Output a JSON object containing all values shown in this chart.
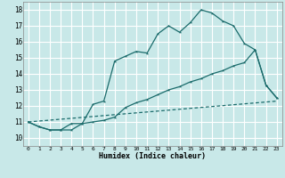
{
  "title": "",
  "xlabel": "Humidex (Indice chaleur)",
  "xlim": [
    -0.5,
    23.5
  ],
  "ylim": [
    9.5,
    18.5
  ],
  "xticks": [
    0,
    1,
    2,
    3,
    4,
    5,
    6,
    7,
    8,
    9,
    10,
    11,
    12,
    13,
    14,
    15,
    16,
    17,
    18,
    19,
    20,
    21,
    22,
    23
  ],
  "yticks": [
    10,
    11,
    12,
    13,
    14,
    15,
    16,
    17,
    18
  ],
  "background_color": "#c8e8e8",
  "grid_color": "#ffffff",
  "line_color": "#1a6b6b",
  "line1_y": [
    11.0,
    10.7,
    10.5,
    10.5,
    10.9,
    10.9,
    12.1,
    12.3,
    14.8,
    15.1,
    15.4,
    15.3,
    16.5,
    17.0,
    16.6,
    17.2,
    18.0,
    17.8,
    17.3,
    17.0,
    15.9,
    15.5,
    13.3,
    12.5
  ],
  "line2_y": [
    11.0,
    10.7,
    10.5,
    10.5,
    10.5,
    10.9,
    11.0,
    11.1,
    11.3,
    11.9,
    12.2,
    12.4,
    12.7,
    13.0,
    13.2,
    13.5,
    13.7,
    14.0,
    14.2,
    14.5,
    14.7,
    15.5,
    13.3,
    12.5
  ],
  "line3_y": [
    11.0,
    12.3
  ]
}
